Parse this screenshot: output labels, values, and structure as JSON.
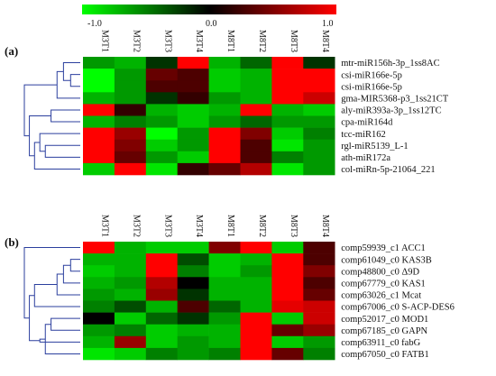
{
  "colorbar": {
    "ticks": [
      "-1.0",
      "0.0",
      "1.0"
    ],
    "colors": {
      "low": "#00ff00",
      "mid": "#000000",
      "high": "#ff0000"
    }
  },
  "chart_data": [
    {
      "type": "heatmap",
      "panel_label": "(a)",
      "columns": [
        "M3T1",
        "M3T2",
        "M3T3",
        "M3T4",
        "M8T1",
        "M8T2",
        "M8T3",
        "M8T4"
      ],
      "rows": [
        "mtr-miR156h-3p_1ss8AC",
        "csi-miR166e-5p",
        "csi-miR166e-5p",
        "gma-MIR5368-p3_1ss21CT",
        "aly-miR393a-3p_1ss12TC",
        "cpa-miR164d",
        "tcc-miR162",
        "rgl-miR5139_L-1",
        "ath-miR172a",
        "col-miRn-5p-21064_221"
      ],
      "values": [
        [
          -0.6,
          -0.7,
          -0.2,
          1.0,
          -0.7,
          -0.4,
          1.0,
          -0.2
        ],
        [
          -1.0,
          -0.6,
          0.4,
          0.3,
          -0.8,
          -0.7,
          1.0,
          1.0
        ],
        [
          -1.0,
          -0.6,
          0.3,
          0.3,
          -0.8,
          -0.7,
          1.0,
          1.0
        ],
        [
          -0.7,
          -0.6,
          -0.2,
          0.2,
          -0.6,
          -0.7,
          1.0,
          0.8
        ],
        [
          1.0,
          0.2,
          -0.7,
          -0.8,
          -0.7,
          1.0,
          -0.7,
          -0.8
        ],
        [
          -0.7,
          -0.5,
          -0.6,
          -0.8,
          -0.6,
          -0.4,
          -0.6,
          -0.6
        ],
        [
          1.0,
          0.6,
          -1.0,
          -0.6,
          1.0,
          0.5,
          -0.8,
          -0.5
        ],
        [
          1.0,
          0.5,
          -0.8,
          -0.6,
          1.0,
          0.3,
          -0.9,
          -0.6
        ],
        [
          1.0,
          0.4,
          -0.6,
          -0.8,
          1.0,
          0.3,
          -0.5,
          -0.6
        ],
        [
          -0.8,
          1.0,
          -0.9,
          0.2,
          0.4,
          0.7,
          -0.9,
          -0.6
        ]
      ],
      "dendrogram": [
        [
          1,
          2
        ],
        [
          10,
          0
        ],
        [
          11,
          3
        ],
        [
          5,
          4
        ],
        [
          8,
          7
        ],
        [
          14,
          6
        ],
        [
          15,
          9
        ],
        [
          13,
          16
        ],
        [
          12,
          17
        ]
      ]
    },
    {
      "type": "heatmap",
      "panel_label": "(b)",
      "columns": [
        "M3T1",
        "M3T2",
        "M3T3",
        "M3T4",
        "M8T1",
        "M8T2",
        "M8T3",
        "M8T4"
      ],
      "rows": [
        "comp59939_c1 ACC1",
        "comp61049_c0 KAS3B",
        "comp48800_c0 Δ9D",
        "comp67779_c0 KAS1",
        "comp63026_c1 Mcat",
        "comp67006_c0 S-ACP-DES6",
        "comp52017_c0 MOD1",
        "comp67185_c0 GAPN",
        "comp63911_c0 fabG",
        "comp67050_c0 FATB1"
      ],
      "values": [
        [
          1.0,
          -0.7,
          -0.8,
          -0.8,
          0.5,
          1.0,
          -0.8,
          0.3
        ],
        [
          -0.7,
          -0.7,
          1.0,
          -0.3,
          -0.8,
          -0.7,
          1.0,
          0.3
        ],
        [
          -0.8,
          -0.7,
          1.0,
          -0.5,
          -0.8,
          -0.6,
          1.0,
          0.5
        ],
        [
          -0.7,
          -0.6,
          0.7,
          0.0,
          -0.7,
          -0.7,
          1.0,
          0.3
        ],
        [
          -0.6,
          -0.7,
          0.6,
          -0.2,
          -0.7,
          -0.7,
          1.0,
          0.4
        ],
        [
          -0.5,
          -0.3,
          -0.7,
          0.3,
          -0.4,
          -0.7,
          0.9,
          0.8
        ],
        [
          0.0,
          -0.8,
          -0.4,
          -0.2,
          -0.6,
          1.0,
          -0.8,
          0.8
        ],
        [
          -0.6,
          -0.5,
          -0.8,
          -0.7,
          -0.7,
          1.0,
          0.4,
          0.6
        ],
        [
          -0.7,
          0.6,
          -0.8,
          -0.6,
          -0.7,
          1.0,
          -0.8,
          -0.6
        ],
        [
          -0.9,
          -0.8,
          -0.5,
          -0.6,
          -0.5,
          1.0,
          0.4,
          -0.5
        ]
      ],
      "dendrogram": [
        [
          1,
          2
        ],
        [
          10,
          3
        ],
        [
          11,
          4
        ],
        [
          6,
          7
        ],
        [
          13,
          9
        ],
        [
          14,
          8
        ],
        [
          12,
          5
        ],
        [
          16,
          15
        ],
        [
          17,
          0
        ]
      ]
    }
  ]
}
